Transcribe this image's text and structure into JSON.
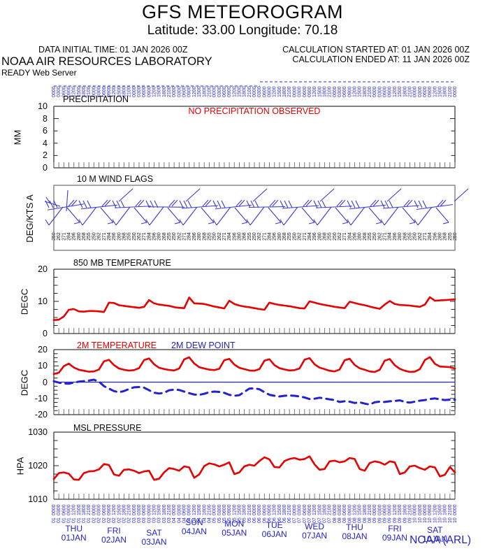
{
  "header": {
    "title": "GFS METEOROGRAM",
    "subtitle": "Latitude: 33.00 Longitude:  70.18",
    "data_initial": "DATA INITIAL TIME: 01 JAN 2026 00Z",
    "org": "NOAA AIR RESOURCES LABORATORY",
    "server": "READY Web Server",
    "calc_started": "CALCULATION STARTED AT: 01 JAN 2026 00Z",
    "calc_ended": "CALCULATION ENDED AT: 11 JAN 2026 00Z"
  },
  "footer": {
    "credit": "NOAA (ARL)"
  },
  "colors": {
    "red": "#e60000",
    "blue": "#2323cc",
    "band_blue": "#2a2ad0",
    "black": "#0a0a0a",
    "tick_gray": "#7a7a7a",
    "border": "#3a3a3a",
    "wind_box": "#777777"
  },
  "x_axis": {
    "start": "01 JAN 2026 00Z",
    "end": "11 JAN 2026 00Z",
    "step_hours": 3,
    "days": [
      {
        "dow": "THU",
        "date": "01JAN"
      },
      {
        "dow": "FRI",
        "date": "02JAN"
      },
      {
        "dow": "SAT",
        "date": "03JAN"
      },
      {
        "dow": "SUN",
        "date": "04JAN"
      },
      {
        "dow": "MON",
        "date": "05JAN"
      },
      {
        "dow": "TUE",
        "date": "06JAN"
      },
      {
        "dow": "WED",
        "date": "07JAN"
      },
      {
        "dow": "THU",
        "date": "08JAN"
      },
      {
        "dow": "FRI",
        "date": "09JAN"
      },
      {
        "dow": "SAT",
        "date": "10JAN"
      }
    ]
  },
  "rotated_bands": {
    "top_hour_cycle": [
      "0000",
      "0300",
      "0600",
      "0900",
      "1200",
      "1500",
      "1800",
      "2100"
    ],
    "bottom_hour_cycle": [
      "0000",
      "0300",
      "0600",
      "0900",
      "1200",
      "1500",
      "1800",
      "2100"
    ],
    "bottom_day_cycle": [
      "01",
      "02",
      "03",
      "04",
      "05",
      "06",
      "07",
      "08",
      "09",
      "10"
    ],
    "wind_dir_cycle": [
      "250",
      "262",
      "271",
      "284",
      "296",
      "280",
      "268",
      "255"
    ]
  },
  "chart_data": [
    {
      "type": "line",
      "title": "PRECIPITATION",
      "ylabel": "MM",
      "ylim": [
        0,
        10
      ],
      "yticks": [
        0,
        2,
        4,
        6,
        8,
        10
      ],
      "annotation": "NO PRECIPITATION OBSERVED",
      "series": [
        {
          "name": "precipitation_mm",
          "color": "#e60000",
          "values": []
        }
      ]
    },
    {
      "type": "wind-barbs",
      "title": "10 M  WIND FLAGS",
      "ylabel": "DEG/KTS  A",
      "barb_clusters": [
        {
          "dir": 280,
          "spd": 15
        },
        {
          "dir": 270,
          "spd": 20
        },
        {
          "dir": 260,
          "spd": 15
        },
        {
          "dir": 250,
          "spd": 20
        },
        {
          "dir": 265,
          "spd": 25
        },
        {
          "dir": 270,
          "spd": 20
        },
        {
          "dir": 255,
          "spd": 20
        },
        {
          "dir": 265,
          "spd": 15
        },
        {
          "dir": 260,
          "spd": 20
        },
        {
          "dir": 270,
          "spd": 15
        },
        {
          "dir": 265,
          "spd": 20
        },
        {
          "dir": 275,
          "spd": 15
        }
      ]
    },
    {
      "type": "line",
      "title": "850 MB  TEMPERATURE",
      "ylabel": "DEGC",
      "ylim": [
        0,
        20
      ],
      "yticks": [
        0,
        10,
        20
      ],
      "series": [
        {
          "name": "850mb_temperature_degc",
          "color": "#e60000",
          "values": [
            4.2,
            4.3,
            5.3,
            7.4,
            7.6,
            6.9,
            6.8,
            7.0,
            7.0,
            6.9,
            6.7,
            9.6,
            9.5,
            8.8,
            8.6,
            8.4,
            8.2,
            8.0,
            8.3,
            10.4,
            9.4,
            9.0,
            8.8,
            8.6,
            8.2,
            8.0,
            7.9,
            11.2,
            9.4,
            9.3,
            9.2,
            8.8,
            8.4,
            8.1,
            7.8,
            10.2,
            9.2,
            8.7,
            8.4,
            8.2,
            7.9,
            7.6,
            7.4,
            9.6,
            9.2,
            8.9,
            8.7,
            8.5,
            8.2,
            7.9,
            7.8,
            10.0,
            9.6,
            9.2,
            8.9,
            8.6,
            8.3,
            8.1,
            7.9,
            9.9,
            9.5,
            9.1,
            8.8,
            8.4,
            8.0,
            7.7,
            9.0,
            10.1,
            9.2,
            8.9,
            8.8,
            8.7,
            8.5,
            8.3,
            9.0,
            11.3,
            10.2,
            10.3,
            10.4,
            10.5,
            10.6
          ]
        }
      ]
    },
    {
      "type": "line",
      "title": "2M TEMPERATURE",
      "title2": "2M  DEW POINT",
      "ylabel": "DEGC",
      "ylim": [
        -20,
        20
      ],
      "yticks": [
        -20,
        -10,
        0,
        10,
        20
      ],
      "zero_line": true,
      "series": [
        {
          "name": "2m_temperature_degc",
          "color": "#e60000",
          "dash": false,
          "values": [
            5.0,
            5.8,
            9.8,
            11.4,
            9.0,
            7.6,
            7.0,
            6.4,
            6.6,
            7.8,
            12.8,
            13.7,
            10.5,
            8.4,
            7.6,
            7.1,
            7.4,
            8.6,
            13.6,
            14.6,
            11.0,
            8.8,
            8.1,
            7.5,
            7.2,
            8.4,
            14.0,
            15.3,
            11.5,
            9.2,
            8.4,
            7.7,
            7.4,
            8.2,
            13.5,
            14.3,
            10.8,
            8.8,
            8.0,
            7.2,
            7.0,
            8.0,
            13.2,
            14.1,
            10.5,
            8.6,
            7.8,
            7.2,
            7.4,
            8.4,
            13.8,
            14.8,
            11.0,
            8.9,
            8.0,
            7.0,
            6.6,
            7.8,
            13.4,
            14.4,
            10.6,
            8.5,
            7.6,
            6.6,
            6.3,
            7.6,
            13.2,
            14.2,
            10.4,
            8.2,
            7.0,
            6.3,
            6.5,
            8.0,
            13.6,
            15.4,
            11.3,
            9.6,
            9.4,
            9.2,
            8.4
          ]
        },
        {
          "name": "2m_dew_point_degc",
          "color": "#2323cc",
          "dash": true,
          "values": [
            0.5,
            -0.3,
            -0.8,
            -1.0,
            -0.2,
            0.3,
            0.6,
            1.0,
            1.5,
            0.3,
            -2.5,
            -4.0,
            -5.5,
            -6.2,
            -5.5,
            -4.2,
            -3.2,
            -3.0,
            -3.4,
            -5.0,
            -6.5,
            -7.0,
            -6.6,
            -5.0,
            -4.6,
            -4.8,
            -5.8,
            -6.8,
            -7.6,
            -7.8,
            -7.2,
            -6.2,
            -5.8,
            -6.0,
            -6.6,
            -7.8,
            -8.4,
            -8.0,
            -6.0,
            -4.0,
            -3.8,
            -4.4,
            -6.2,
            -7.8,
            -8.4,
            -8.8,
            -8.4,
            -8.2,
            -8.4,
            -8.8,
            -9.4,
            -10.4,
            -10.2,
            -9.6,
            -10.0,
            -10.6,
            -11.0,
            -12.2,
            -11.8,
            -12.0,
            -12.8,
            -12.4,
            -13.2,
            -13.8,
            -12.4,
            -12.0,
            -12.2,
            -11.8,
            -11.6,
            -11.2,
            -12.2,
            -12.6,
            -12.0,
            -11.4,
            -11.0,
            -10.4,
            -10.0,
            -10.6,
            -11.0,
            -10.8,
            -10.9
          ]
        }
      ]
    },
    {
      "type": "line",
      "title": "MSL PRESSURE",
      "ylabel": "HPA",
      "ylim": [
        1010,
        1030
      ],
      "yticks": [
        1010,
        1020,
        1030
      ],
      "series": [
        {
          "name": "msl_pressure_hpa",
          "color": "#e60000",
          "values": [
            1016.0,
            1017.8,
            1018.0,
            1017.6,
            1015.9,
            1015.8,
            1017.8,
            1018.3,
            1018.4,
            1018.9,
            1020.5,
            1020.2,
            1017.4,
            1017.0,
            1018.8,
            1018.9,
            1018.5,
            1017.8,
            1018.3,
            1018.5,
            1015.8,
            1016.1,
            1018.0,
            1019.3,
            1019.0,
            1018.5,
            1019.8,
            1019.5,
            1016.4,
            1017.4,
            1019.9,
            1020.7,
            1020.4,
            1019.8,
            1020.3,
            1021.0,
            1017.5,
            1018.0,
            1019.8,
            1020.3,
            1020.0,
            1021.4,
            1022.5,
            1021.9,
            1019.6,
            1019.5,
            1021.4,
            1022.0,
            1022.3,
            1021.8,
            1022.0,
            1022.8,
            1020.4,
            1018.8,
            1019.0,
            1021.3,
            1021.5,
            1021.0,
            1021.3,
            1022.3,
            1022.0,
            1019.0,
            1018.5,
            1020.8,
            1021.3,
            1021.0,
            1020.3,
            1021.3,
            1021.0,
            1017.5,
            1018.0,
            1019.8,
            1020.0,
            1019.3,
            1018.8,
            1019.8,
            1019.5,
            1016.8,
            1017.3,
            1019.6,
            1018.0
          ]
        }
      ]
    }
  ]
}
